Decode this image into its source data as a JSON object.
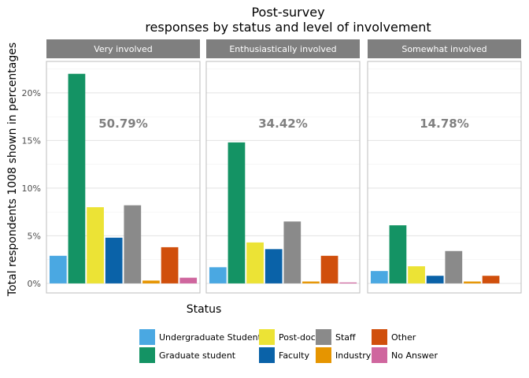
{
  "chart_data": {
    "type": "bar",
    "title": "Post-survey",
    "subtitle": "responses by status and level of involvement",
    "xlabel": "Status",
    "ylabel": "Total respondents 1008 shown in percentages",
    "ylim": [
      -0.01,
      0.233
    ],
    "yticks": [
      {
        "value": 0,
        "label": "0%"
      },
      {
        "value": 0.05,
        "label": "5%"
      },
      {
        "value": 0.1,
        "label": "10%"
      },
      {
        "value": 0.15,
        "label": "15%"
      },
      {
        "value": 0.2,
        "label": "20%"
      }
    ],
    "grid": true,
    "legend_position": "bottom",
    "categories": [
      "Undergraduate Student",
      "Graduate student",
      "Post-doc",
      "Faculty",
      "Staff",
      "Industry",
      "Other",
      "No Answer"
    ],
    "colors": [
      "#4aa8e2",
      "#149364",
      "#ece335",
      "#0a62a8",
      "#8a8a8a",
      "#e69500",
      "#d04f0c",
      "#cf669e"
    ],
    "legend": {
      "columns": [
        [
          "Undergraduate Student",
          "Graduate student"
        ],
        [
          "Post-doc",
          "Faculty"
        ],
        [
          "Staff",
          "Industry"
        ],
        [
          "Other",
          "No Answer"
        ]
      ]
    },
    "facets": [
      {
        "strip": "Very involved",
        "annotation": "50.79%",
        "values": [
          0.029,
          0.22,
          0.08,
          0.048,
          0.082,
          0.003,
          0.038,
          0.006
        ]
      },
      {
        "strip": "Enthusiastically involved",
        "annotation": "34.42%",
        "values": [
          0.017,
          0.148,
          0.043,
          0.036,
          0.065,
          0.002,
          0.029,
          0.001
        ]
      },
      {
        "strip": "Somewhat involved",
        "annotation": "14.78%",
        "values": [
          0.013,
          0.061,
          0.018,
          0.008,
          0.034,
          0.002,
          0.008,
          null
        ]
      }
    ]
  }
}
